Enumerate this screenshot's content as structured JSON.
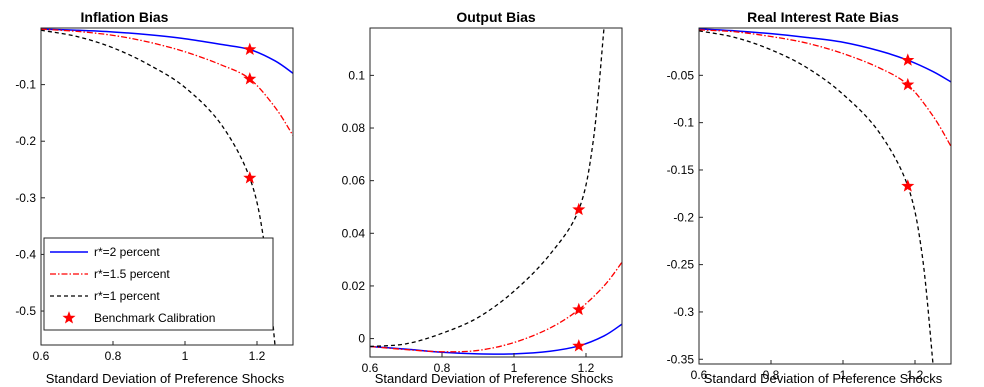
{
  "colors": {
    "r2": "#0000ff",
    "r15": "#ff0000",
    "r1": "#000000",
    "star": "#ff0000"
  },
  "legend": {
    "placement": "bottom-left of first panel",
    "entries": [
      "r*=2 percent",
      "r*=1.5 percent",
      "r*=1 percent",
      "Benchmark Calibration"
    ]
  },
  "chart_data": [
    {
      "type": "line",
      "title": "Inflation Bias",
      "xlabel": "Standard Deviation of Preference Shocks",
      "ylabel": "",
      "xlim": [
        0.6,
        1.3
      ],
      "ylim": [
        -0.56,
        0.0
      ],
      "xticks": [
        0.6,
        0.8,
        1,
        1.2
      ],
      "yticks": [
        -0.1,
        -0.2,
        -0.3,
        -0.4,
        -0.5
      ],
      "grid": false,
      "series": [
        {
          "name": "r*=2 percent",
          "style": "solid",
          "x": [
            0.6,
            0.7,
            0.8,
            0.9,
            1.0,
            1.1,
            1.18,
            1.25,
            1.3
          ],
          "y": [
            -0.002,
            -0.004,
            -0.007,
            -0.012,
            -0.019,
            -0.029,
            -0.038,
            -0.058,
            -0.08
          ]
        },
        {
          "name": "r*=1.5 percent",
          "style": "dashdot",
          "x": [
            0.6,
            0.7,
            0.8,
            0.9,
            1.0,
            1.1,
            1.18,
            1.25,
            1.3
          ],
          "y": [
            -0.002,
            -0.006,
            -0.013,
            -0.025,
            -0.042,
            -0.065,
            -0.09,
            -0.14,
            -0.19
          ]
        },
        {
          "name": "r*=1 percent",
          "style": "dashed",
          "x": [
            0.6,
            0.7,
            0.8,
            0.9,
            1.0,
            1.1,
            1.18,
            1.22,
            1.25
          ],
          "y": [
            -0.004,
            -0.015,
            -0.035,
            -0.065,
            -0.105,
            -0.17,
            -0.265,
            -0.38,
            -0.56
          ]
        }
      ],
      "markers": {
        "name": "Benchmark Calibration",
        "x": [
          1.18,
          1.18,
          1.18
        ],
        "y": [
          -0.038,
          -0.09,
          -0.265
        ]
      }
    },
    {
      "type": "line",
      "title": "Output Bias",
      "xlabel": "Standard Deviation of Preference Shocks",
      "ylabel": "",
      "xlim": [
        0.6,
        1.3
      ],
      "ylim": [
        -0.007,
        0.118
      ],
      "xticks": [
        0.6,
        0.8,
        1,
        1.2
      ],
      "yticks": [
        0,
        0.02,
        0.04,
        0.06,
        0.08,
        0.1
      ],
      "grid": false,
      "series": [
        {
          "name": "r*=2 percent",
          "style": "solid",
          "x": [
            0.6,
            0.7,
            0.8,
            0.9,
            1.0,
            1.1,
            1.18,
            1.25,
            1.3
          ],
          "y": [
            -0.003,
            -0.004,
            -0.0052,
            -0.0058,
            -0.0058,
            -0.0048,
            -0.0028,
            0.001,
            0.0055
          ]
        },
        {
          "name": "r*=1.5 percent",
          "style": "dashdot",
          "x": [
            0.6,
            0.7,
            0.8,
            0.9,
            1.0,
            1.1,
            1.18,
            1.25,
            1.3
          ],
          "y": [
            -0.003,
            -0.0042,
            -0.005,
            -0.0045,
            -0.0015,
            0.004,
            0.011,
            0.02,
            0.029
          ]
        },
        {
          "name": "r*=1 percent",
          "style": "dashed",
          "x": [
            0.6,
            0.7,
            0.8,
            0.9,
            1.0,
            1.1,
            1.18,
            1.22,
            1.25
          ],
          "y": [
            -0.003,
            -0.002,
            0.002,
            0.008,
            0.018,
            0.032,
            0.049,
            0.075,
            0.118
          ]
        }
      ],
      "markers": {
        "name": "Benchmark Calibration",
        "x": [
          1.18,
          1.18,
          1.18
        ],
        "y": [
          -0.0028,
          0.011,
          0.049
        ]
      }
    },
    {
      "type": "line",
      "title": "Real Interest Rate Bias",
      "xlabel": "Standard Deviation of Preference Shocks",
      "ylabel": "",
      "xlim": [
        0.6,
        1.3
      ],
      "ylim": [
        -0.355,
        0.0
      ],
      "xticks": [
        0.6,
        0.8,
        1,
        1.2
      ],
      "yticks": [
        -0.05,
        -0.1,
        -0.15,
        -0.2,
        -0.25,
        -0.3,
        -0.35
      ],
      "grid": false,
      "series": [
        {
          "name": "r*=2 percent",
          "style": "solid",
          "x": [
            0.6,
            0.7,
            0.8,
            0.9,
            1.0,
            1.1,
            1.18,
            1.25,
            1.3
          ],
          "y": [
            -0.001,
            -0.003,
            -0.006,
            -0.01,
            -0.015,
            -0.024,
            -0.034,
            -0.046,
            -0.057
          ]
        },
        {
          "name": "r*=1.5 percent",
          "style": "dashdot",
          "x": [
            0.6,
            0.7,
            0.8,
            0.9,
            1.0,
            1.1,
            1.18,
            1.25,
            1.3
          ],
          "y": [
            -0.002,
            -0.004,
            -0.009,
            -0.016,
            -0.027,
            -0.042,
            -0.06,
            -0.093,
            -0.125
          ]
        },
        {
          "name": "r*=1 percent",
          "style": "dashed",
          "x": [
            0.6,
            0.7,
            0.8,
            0.9,
            1.0,
            1.1,
            1.18,
            1.22,
            1.25
          ],
          "y": [
            -0.003,
            -0.01,
            -0.023,
            -0.042,
            -0.07,
            -0.11,
            -0.167,
            -0.24,
            -0.355
          ]
        }
      ],
      "markers": {
        "name": "Benchmark Calibration",
        "x": [
          1.18,
          1.18,
          1.18
        ],
        "y": [
          -0.034,
          -0.06,
          -0.167
        ]
      }
    }
  ]
}
